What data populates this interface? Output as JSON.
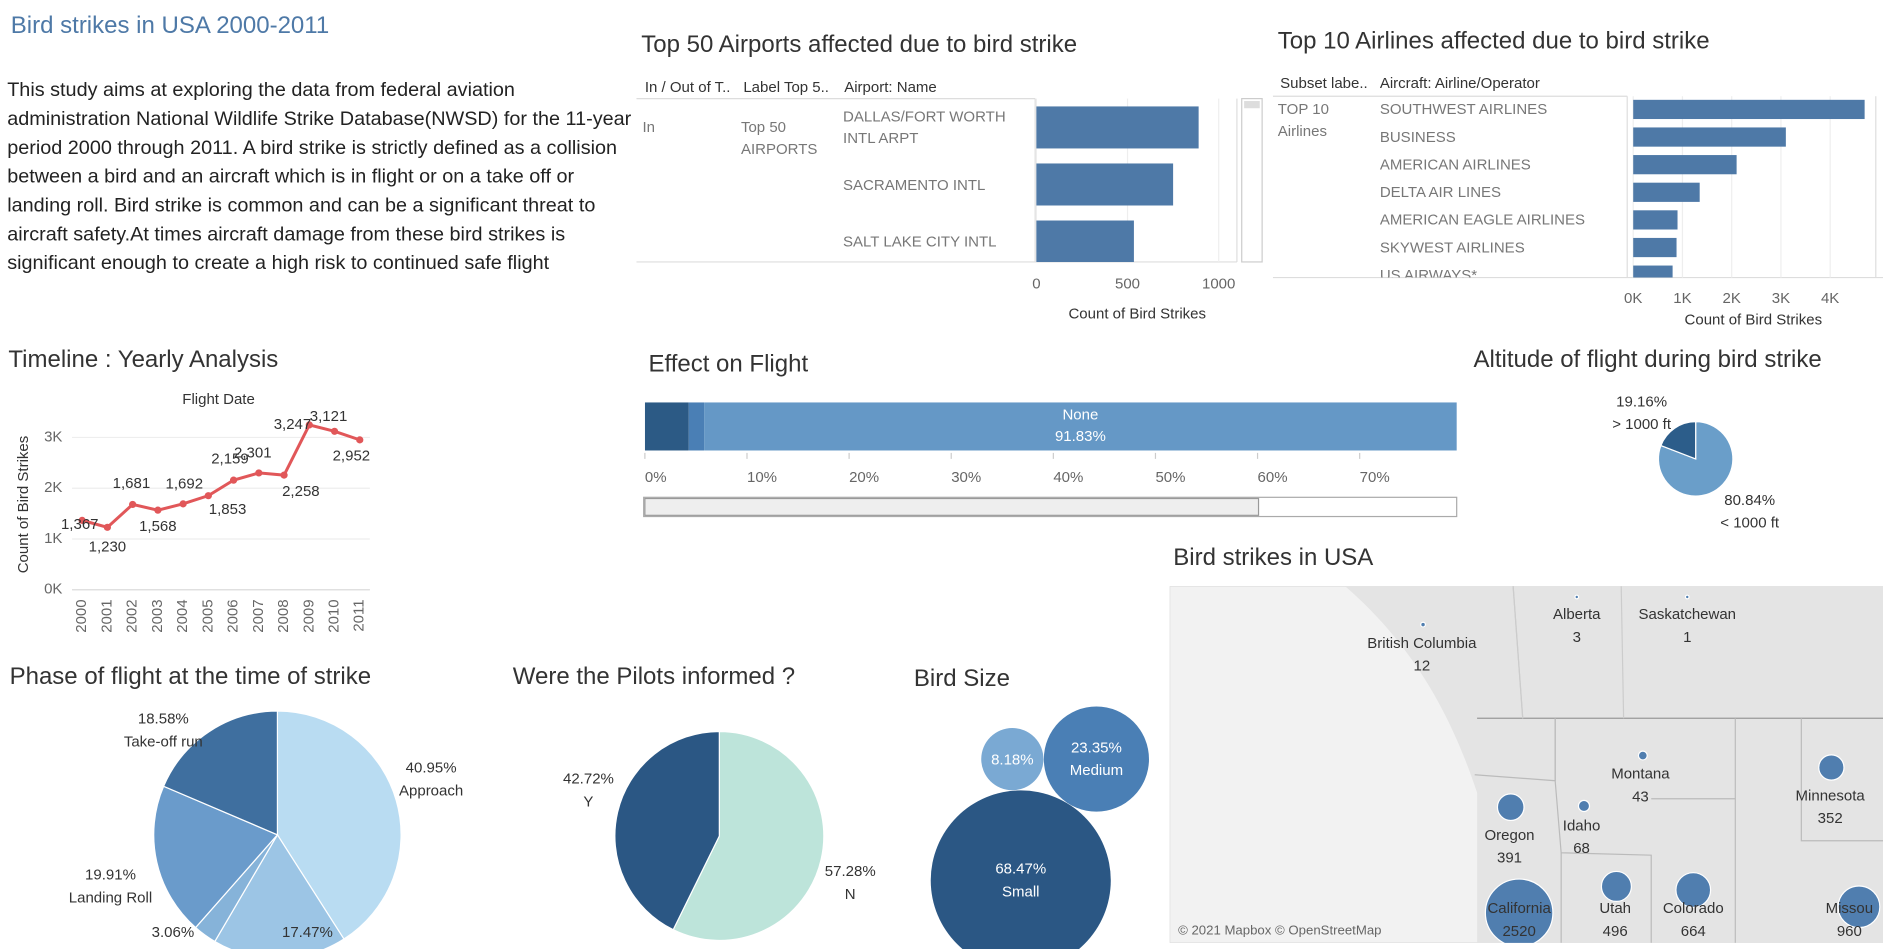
{
  "title": "Bird strikes in USA 2000-2011",
  "description": "This study aims at exploring the data from federal aviation administration National Wildlife Strike Database(NWSD) for the 11-year period 2000 through 2011. A bird strike is strictly defined as a collision between a bird and an aircraft which is in flight or on a take off or landing roll. Bird strike is common and can be a significant threat to aircraft safety.At times aircraft damage from these bird strikes is significant enough to create a high risk to continued safe flight",
  "chart_data": [
    {
      "type": "bar",
      "orientation": "horizontal",
      "title": "Top 50 Airports affected due to bird strike",
      "column_headers": [
        "In / Out of T..",
        "Label Top 5..",
        "Airport: Name"
      ],
      "row_labels": [
        "In",
        "Top 50 AIRPORTS"
      ],
      "categories": [
        "DALLAS/FORT WORTH INTL ARPT",
        "SACRAMENTO INTL",
        "SALT LAKE CITY INTL"
      ],
      "values": [
        890,
        750,
        535
      ],
      "color": "#4e79a7",
      "xlim": [
        0,
        1100
      ],
      "xticks": [
        0,
        500,
        1000
      ],
      "xlabel": "Count of Bird Strikes"
    },
    {
      "type": "bar",
      "orientation": "horizontal",
      "title": "Top 10 Airlines affected due to bird strike",
      "column_headers": [
        "Subset labe..",
        "Aircraft: Airline/Operator"
      ],
      "row_labels": [
        "TOP 10 Airlines"
      ],
      "categories": [
        "SOUTHWEST AIRLINES",
        "BUSINESS",
        "AMERICAN AIRLINES",
        "DELTA AIR LINES",
        "AMERICAN EAGLE AIRLINES",
        "SKYWEST AIRLINES",
        "US AIRWAYS*"
      ],
      "values": [
        4700,
        3100,
        2100,
        1350,
        900,
        880,
        800
      ],
      "color": "#4e79a7",
      "xlim": [
        0,
        5000
      ],
      "xticks": [
        {
          "value": 0,
          "label": "0K"
        },
        {
          "value": 1000,
          "label": "1K"
        },
        {
          "value": 2000,
          "label": "2K"
        },
        {
          "value": 3000,
          "label": "3K"
        },
        {
          "value": 4000,
          "label": "4K"
        }
      ],
      "xlabel": "Count of Bird Strikes"
    },
    {
      "type": "line",
      "title": "Timeline : Yearly Analysis",
      "subtitle": "Flight Date",
      "ylabel": "Count of Bird Strikes",
      "x": [
        2000,
        2001,
        2002,
        2003,
        2004,
        2005,
        2006,
        2007,
        2008,
        2009,
        2010,
        2011
      ],
      "values": [
        1367,
        1230,
        1681,
        1568,
        1692,
        1853,
        2159,
        2301,
        2258,
        3247,
        3121,
        2952
      ],
      "value_labels": [
        "1,367",
        "1,230",
        "1,681",
        "1,568",
        "1,692",
        "1,853",
        "2,159",
        "2,301",
        "2,258",
        "3,247",
        "3,121",
        "2,952"
      ],
      "color": "#e15759",
      "xlim": [
        1999.6,
        2011.4
      ],
      "ylim": [
        0,
        3500
      ],
      "yticks": [
        {
          "value": 0,
          "label": "0K"
        },
        {
          "value": 1000,
          "label": "1K"
        },
        {
          "value": 2000,
          "label": "2K"
        },
        {
          "value": 3000,
          "label": "3K"
        }
      ],
      "grid": true
    },
    {
      "type": "stacked-bar",
      "title": "Effect on Flight",
      "categories": [
        null,
        null,
        "None"
      ],
      "values": [
        4.3,
        1.5,
        91.83
      ],
      "value_labels": [
        null,
        null,
        "91.83%"
      ],
      "colors": [
        "#2c5a85",
        "#4a7fb5",
        "#6598c6"
      ],
      "xlim": [
        0,
        79.5
      ],
      "xticks": [
        {
          "value": 0,
          "label": "0%"
        },
        {
          "value": 10,
          "label": "10%"
        },
        {
          "value": 20,
          "label": "20%"
        },
        {
          "value": 30,
          "label": "30%"
        },
        {
          "value": 40,
          "label": "40%"
        },
        {
          "value": 50,
          "label": "50%"
        },
        {
          "value": 60,
          "label": "60%"
        },
        {
          "value": 70,
          "label": "70%"
        }
      ]
    },
    {
      "type": "pie",
      "title": "Altitude of flight during bird strike",
      "categories": [
        "< 1000 ft",
        "> 1000 ft"
      ],
      "values": [
        80.84,
        19.16
      ],
      "value_labels": [
        "80.84%",
        "19.16%"
      ],
      "colors": [
        "#6a9ec9",
        "#2c5d8a"
      ]
    },
    {
      "type": "map",
      "title": "Bird strikes in USA",
      "attribution": "© 2021 Mapbox © OpenStreetMap",
      "color": "#3f72a8",
      "regions": [
        {
          "name": "British Columbia",
          "value": 12
        },
        {
          "name": "Alberta",
          "value": 3
        },
        {
          "name": "Saskatchewan",
          "value": 1
        },
        {
          "name": "Montana",
          "value": 43
        },
        {
          "name": "Minnesota",
          "value": 352
        },
        {
          "name": "Oregon",
          "value": 391
        },
        {
          "name": "Idaho",
          "value": 68
        },
        {
          "name": "California",
          "value": 2520
        },
        {
          "name": "Utah",
          "value": 496
        },
        {
          "name": "Colorado",
          "value": 664
        },
        {
          "name": "Missou",
          "value": 960
        }
      ]
    },
    {
      "type": "pie",
      "title": "Phase of flight at the time of strike",
      "categories": [
        "Approach",
        null,
        null,
        "Landing Roll",
        "Take-off run"
      ],
      "values": [
        40.95,
        17.47,
        3.06,
        19.91,
        18.58
      ],
      "value_labels": [
        "40.95%",
        "17.47%",
        "3.06%",
        "19.91%",
        "18.58%"
      ],
      "colors": [
        "#b9dcf2",
        "#9cc5e5",
        "#86b3d9",
        "#6a9bcb",
        "#3f6f9f"
      ]
    },
    {
      "type": "pie",
      "title": "Were the Pilots informed ?",
      "categories": [
        "N",
        "Y"
      ],
      "values": [
        57.28,
        42.72
      ],
      "value_labels": [
        "57.28%",
        "42.72%"
      ],
      "colors": [
        "#bde4da",
        "#2b5784"
      ]
    },
    {
      "type": "bubble",
      "title": "Bird Size",
      "categories": [
        null,
        "Medium",
        "Small"
      ],
      "values": [
        8.18,
        23.35,
        68.47
      ],
      "value_labels": [
        "8.18%",
        "23.35%",
        "68.47%"
      ],
      "colors": [
        "#7aa9d3",
        "#4a7fb5",
        "#2b5784"
      ]
    }
  ]
}
